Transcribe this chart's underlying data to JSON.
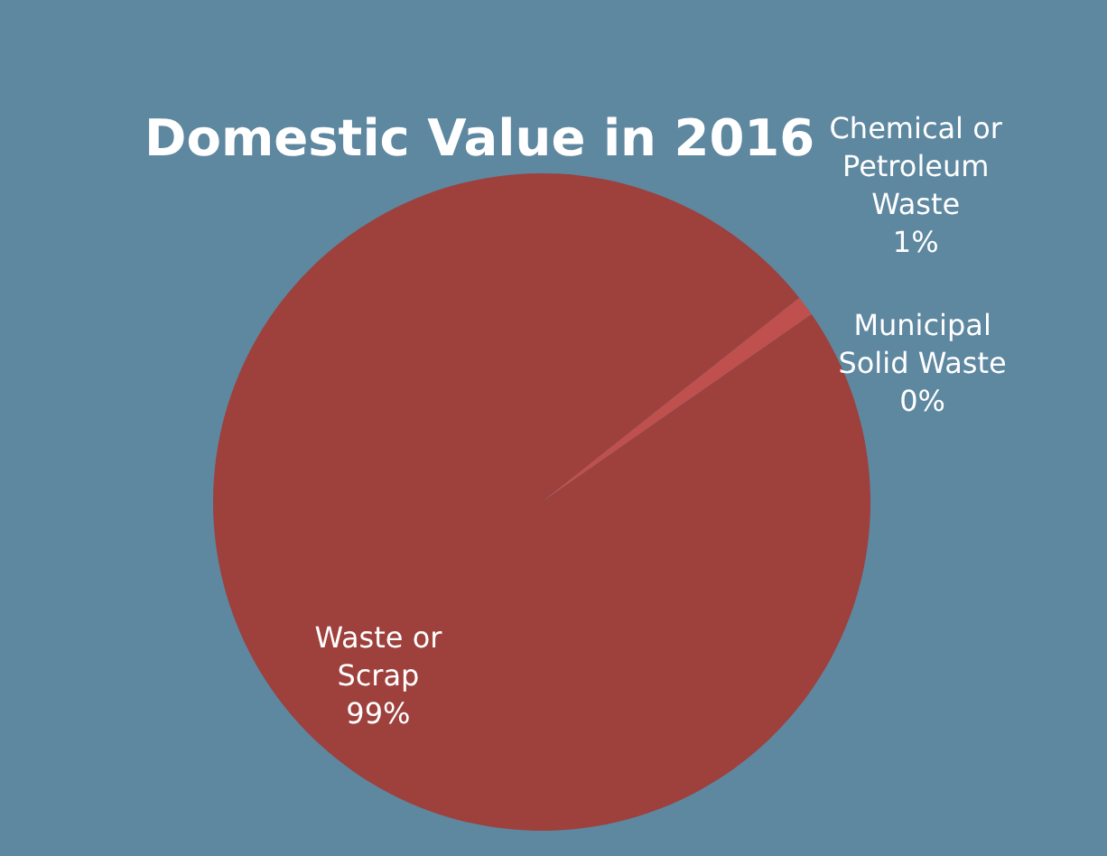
{
  "chart_data": {
    "type": "pie",
    "title": "Domestic Value in 2016",
    "categories": [
      "Chemical or Petroleum Waste",
      "Municipal Solid Waste",
      "Waste or Scrap"
    ],
    "values": [
      1,
      0,
      99
    ],
    "value_labels": [
      "1%",
      "0%",
      "99%"
    ],
    "colors": [
      "#c0504d",
      "#c0504d",
      "#9e403c"
    ]
  }
}
